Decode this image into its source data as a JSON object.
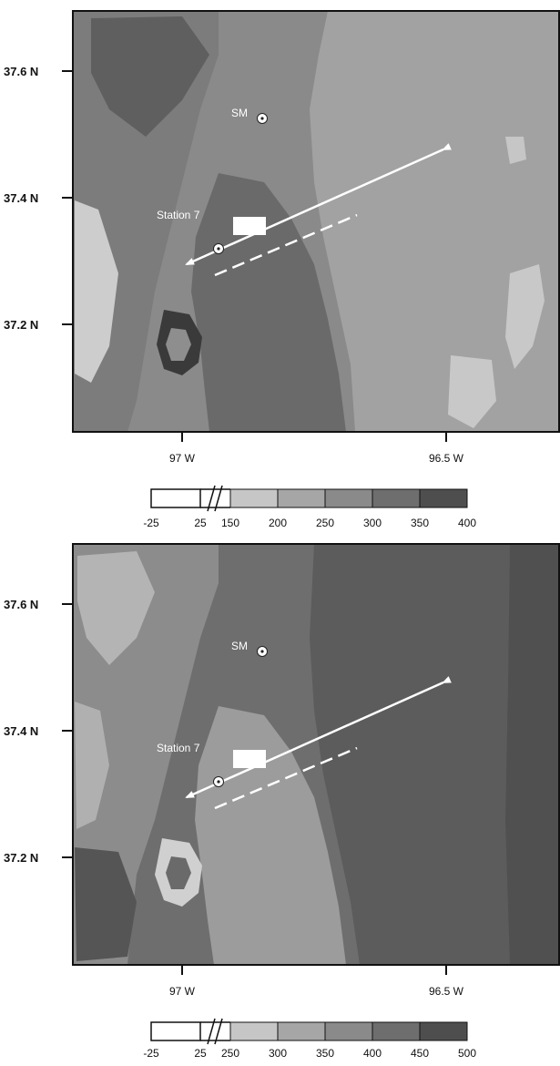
{
  "figure": {
    "panels": [
      {
        "id": "top",
        "lat_ticks": [
          "37.6 N",
          "37.4 N",
          "37.2 N"
        ],
        "lon_ticks": [
          "97 W",
          "96.5 W"
        ],
        "markers": {
          "station_sm": "SM",
          "station_7": "Station 7"
        },
        "colorbar": {
          "labels": [
            "-25",
            "25",
            "150",
            "200",
            "250",
            "300",
            "350",
            "400"
          ],
          "colors": [
            "#ffffff",
            "#ffffff",
            "#c6c6c6",
            "#a6a6a6",
            "#8a8a8a",
            "#6e6e6e",
            "#4e4e4e",
            "#2f2f2f"
          ]
        }
      },
      {
        "id": "bottom",
        "lat_ticks": [
          "37.6 N",
          "37.4 N",
          "37.2 N"
        ],
        "lon_ticks": [
          "97 W",
          "96.5 W"
        ],
        "markers": {
          "station_sm": "SM",
          "station_7": "Station 7"
        },
        "colorbar": {
          "labels": [
            "-25",
            "25",
            "250",
            "300",
            "350",
            "400",
            "450",
            "500"
          ],
          "colors": [
            "#ffffff",
            "#ffffff",
            "#c6c6c6",
            "#a6a6a6",
            "#8a8a8a",
            "#6e6e6e",
            "#4e4e4e",
            "#2f2f2f"
          ]
        }
      }
    ]
  }
}
